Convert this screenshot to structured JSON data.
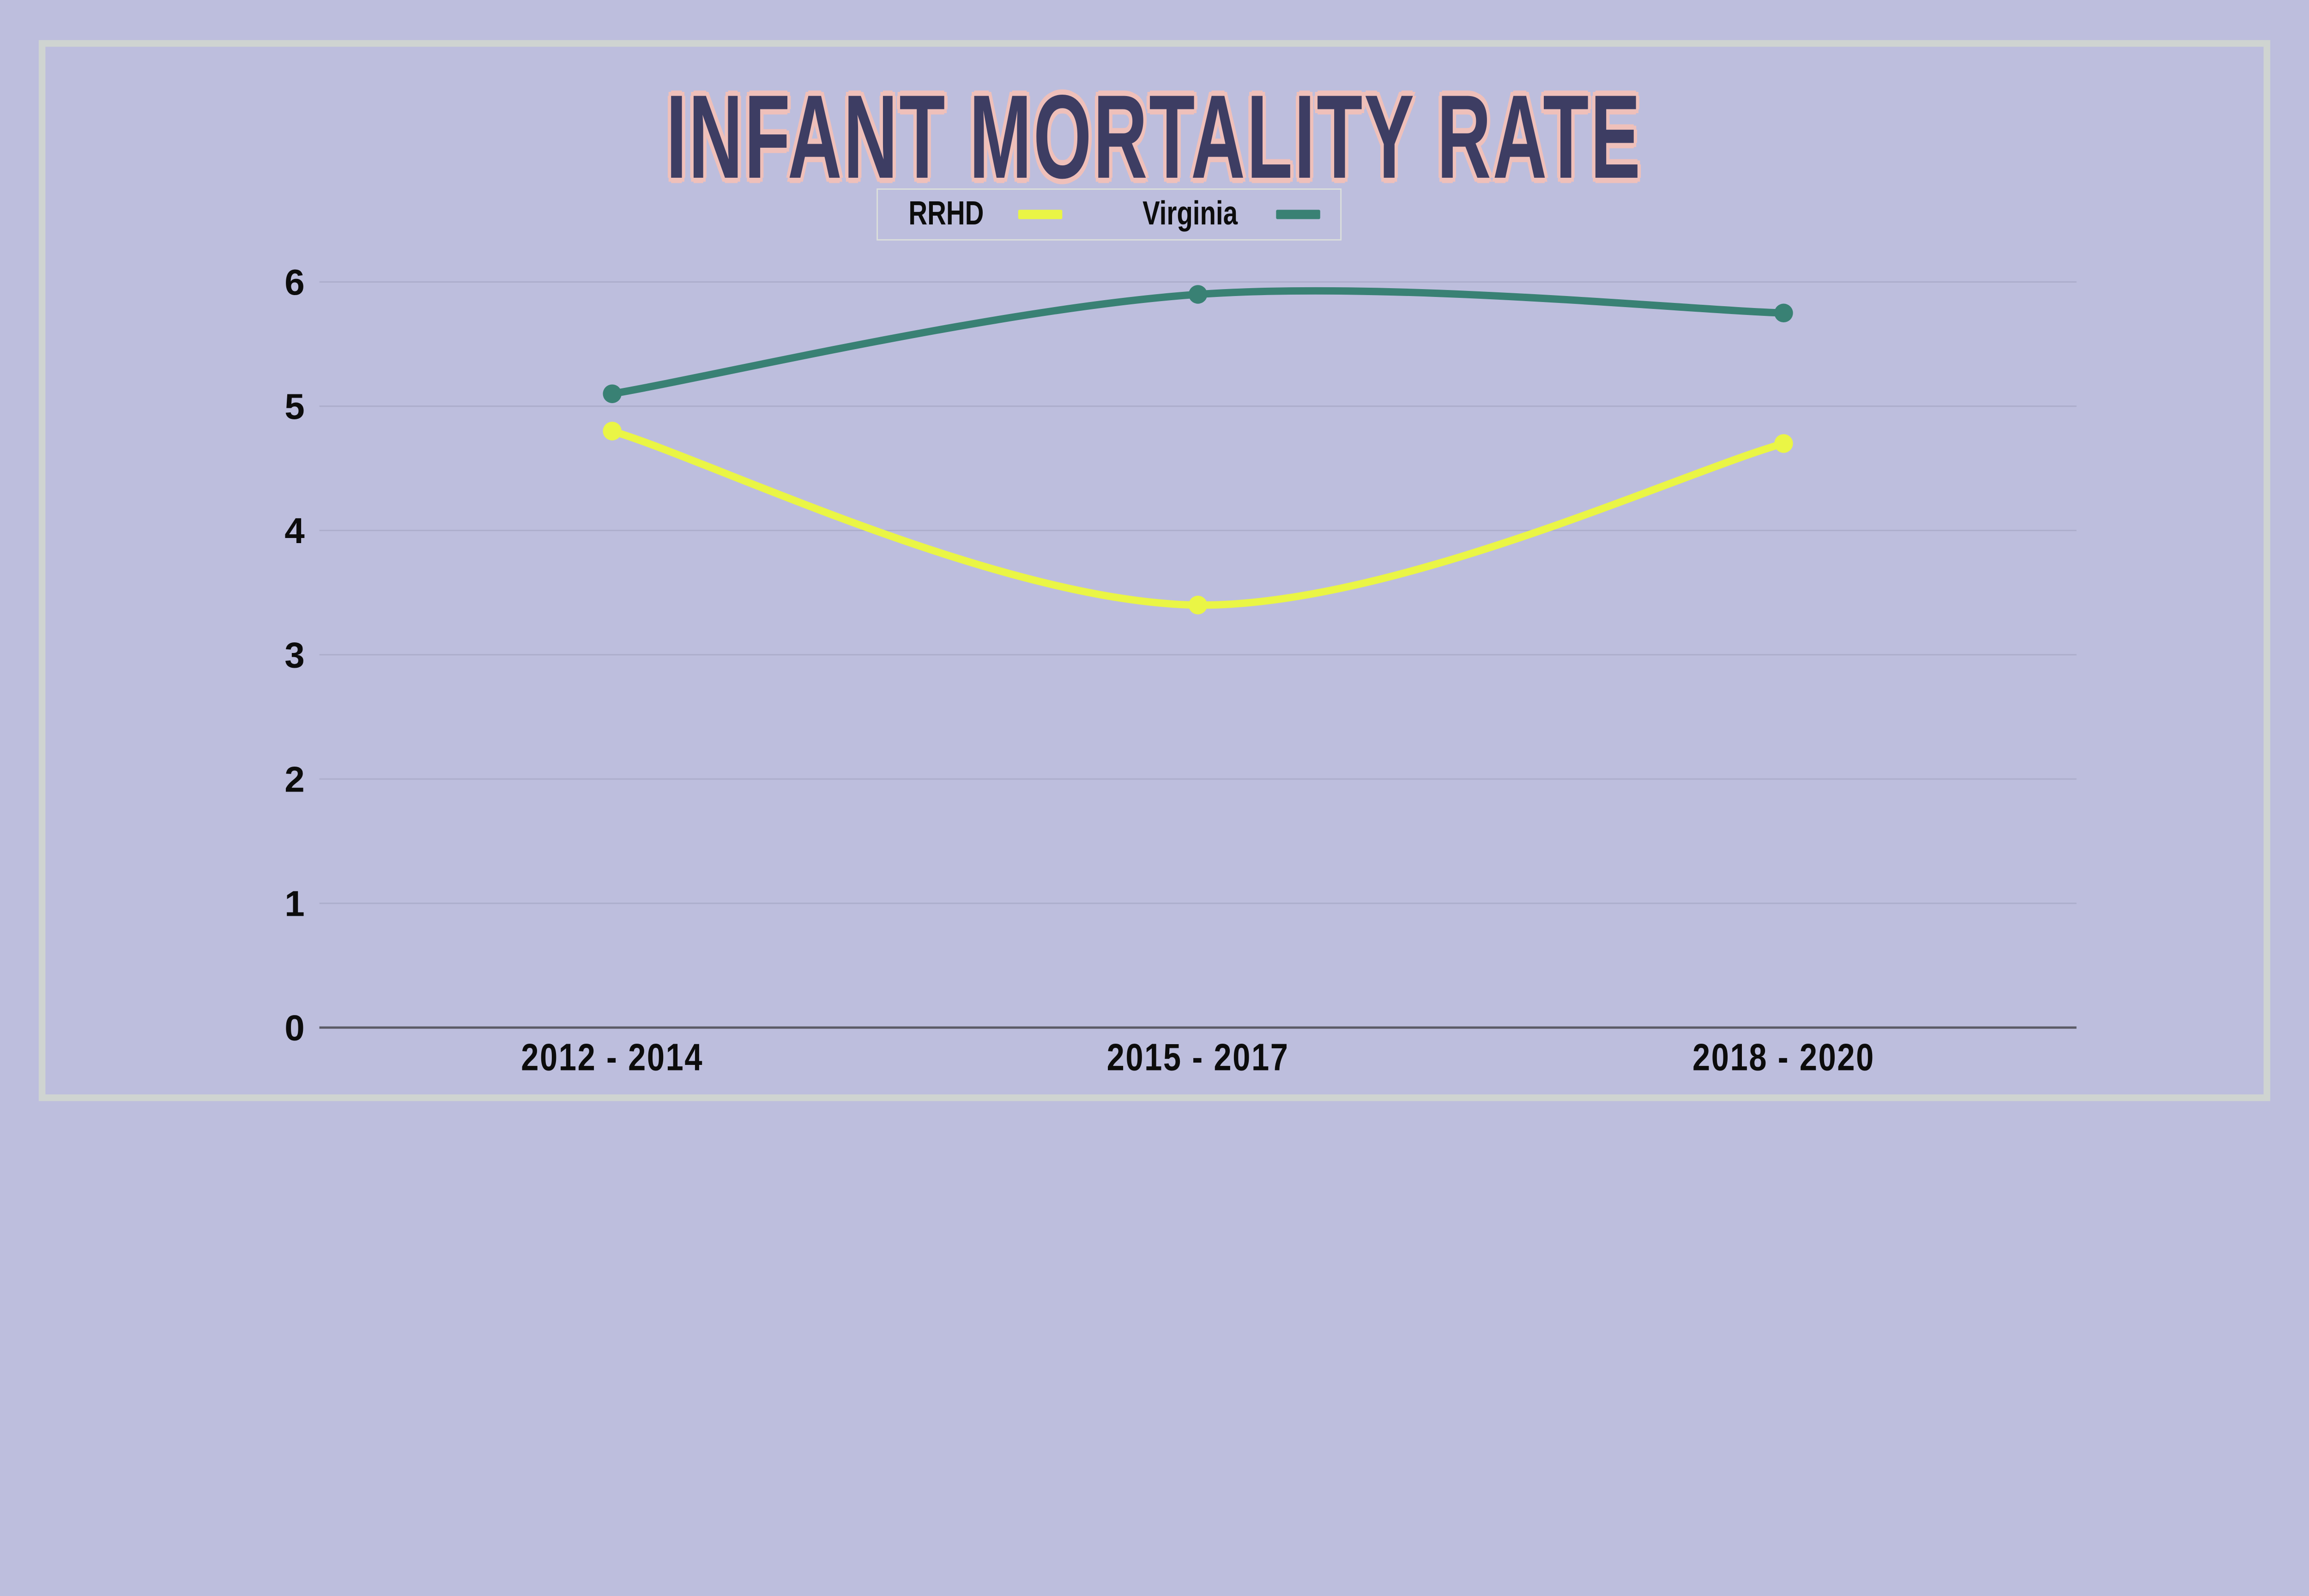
{
  "page": {
    "background": "#bdbedd",
    "frame_color": "#cfd4d1"
  },
  "title": {
    "text": "INFANT MORTALITY RATE",
    "color": "#3d3d63",
    "outline_color": "#efc0ba"
  },
  "legend": {
    "items": [
      {
        "label": "RRHD",
        "color": "#eaf545"
      },
      {
        "label": "Virginia",
        "color": "#398174"
      }
    ]
  },
  "chart_data": {
    "type": "line",
    "title": "INFANT MORTALITY RATE",
    "categories": [
      "2012 - 2014",
      "2015 - 2017",
      "2018 - 2020"
    ],
    "series": [
      {
        "name": "RRHD",
        "color": "#eaf545",
        "values": [
          4.8,
          3.4,
          4.7
        ]
      },
      {
        "name": "Virginia",
        "color": "#398174",
        "values": [
          5.1,
          5.9,
          5.75
        ]
      }
    ],
    "ylim": [
      0,
      6
    ],
    "yticks": [
      0,
      1,
      2,
      3,
      4,
      5,
      6
    ],
    "grid": true,
    "smooth": true,
    "legend_position": "top",
    "axis_color": "#5b5b66",
    "gridline_color": "#a3a4c2",
    "tick_label_color": "#0c0c0c"
  }
}
